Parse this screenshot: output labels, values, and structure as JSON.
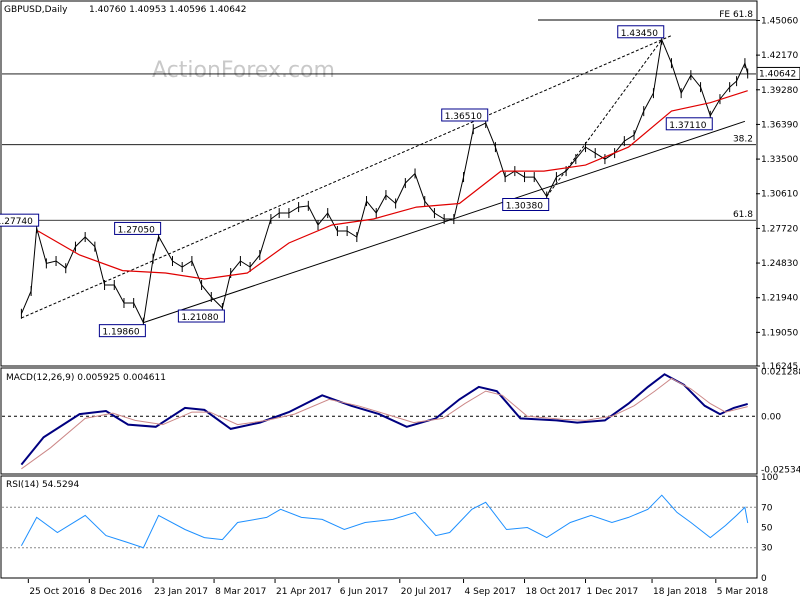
{
  "chart_data": [
    {
      "type": "candlestick",
      "title": "GBPUSD,Daily",
      "ohlc": "1.40760 1.40953 1.40596 1.40642",
      "watermark": "ActionForex.com",
      "last_price": "1.40642",
      "y_ticks": [
        "1.45060",
        "1.42170",
        "1.39280",
        "1.36390",
        "1.33500",
        "1.30610",
        "1.27720",
        "1.24830",
        "1.21940",
        "1.19050",
        "1.16245"
      ],
      "ylim": [
        1.16245,
        1.466
      ],
      "x_ticks": [
        "25 Oct 2016",
        "8 Dec 2016",
        "23 Jan 2017",
        "8 Mar 2017",
        "21 Apr 2017",
        "6 Jun 2017",
        "20 Jul 2017",
        "4 Sep 2017",
        "18 Oct 2017",
        "1 Dec 2017",
        "18 Jan 2018",
        "5 Mar 2018"
      ],
      "annotations": [
        {
          "label": "1.27740",
          "x": "2016-10-31",
          "y": 1.2774
        },
        {
          "label": "1.19860",
          "x": "2017-01-16",
          "y": 1.1986
        },
        {
          "label": "1.27050",
          "x": "2017-01-27",
          "y": 1.2705
        },
        {
          "label": "1.21080",
          "x": "2017-03-14",
          "y": 1.2108
        },
        {
          "label": "1.36510",
          "x": "2017-09-20",
          "y": 1.3651
        },
        {
          "label": "1.30380",
          "x": "2017-11-03",
          "y": 1.3038
        },
        {
          "label": "1.43450",
          "x": "2018-01-25",
          "y": 1.4345
        },
        {
          "label": "1.37110",
          "x": "2018-03-01",
          "y": 1.3711
        }
      ],
      "horizontal_levels": [
        {
          "label": "FE 61.8",
          "y": 1.451
        },
        {
          "label": "38.2",
          "y": 1.347
        },
        {
          "label": "61.8",
          "y": 1.284
        },
        {
          "label": "",
          "y": 1.406
        }
      ],
      "trend_lines": [
        {
          "style": "solid",
          "from": [
            "2017-01-16",
            1.1986
          ],
          "to": [
            "2018-03-26",
            1.3665
          ]
        },
        {
          "style": "dotted",
          "from": [
            "2016-10-20",
            1.2025
          ],
          "to": [
            "2018-02-01",
            1.438
          ]
        },
        {
          "style": "dotted",
          "from": [
            "2017-11-03",
            1.3038
          ],
          "to": [
            "2018-01-25",
            1.4345
          ]
        }
      ],
      "series": [
        {
          "name": "price",
          "color": "#000000",
          "values": [
            [
              "2016-10-20",
              1.206
            ],
            [
              "2016-10-27",
              1.225
            ],
            [
              "2016-10-31",
              1.2774
            ],
            [
              "2016-11-07",
              1.248
            ],
            [
              "2016-11-14",
              1.25
            ],
            [
              "2016-11-21",
              1.244
            ],
            [
              "2016-11-28",
              1.262
            ],
            [
              "2016-12-05",
              1.27
            ],
            [
              "2016-12-12",
              1.262
            ],
            [
              "2016-12-19",
              1.23
            ],
            [
              "2016-12-26",
              1.23
            ],
            [
              "2017-01-02",
              1.215
            ],
            [
              "2017-01-09",
              1.215
            ],
            [
              "2017-01-16",
              1.1986
            ],
            [
              "2017-01-23",
              1.252
            ],
            [
              "2017-01-27",
              1.2705
            ],
            [
              "2017-02-06",
              1.25
            ],
            [
              "2017-02-13",
              1.245
            ],
            [
              "2017-02-20",
              1.25
            ],
            [
              "2017-02-27",
              1.23
            ],
            [
              "2017-03-06",
              1.22
            ],
            [
              "2017-03-14",
              1.2108
            ],
            [
              "2017-03-20",
              1.24
            ],
            [
              "2017-03-27",
              1.25
            ],
            [
              "2017-04-03",
              1.245
            ],
            [
              "2017-04-10",
              1.255
            ],
            [
              "2017-04-18",
              1.285
            ],
            [
              "2017-04-24",
              1.29
            ],
            [
              "2017-05-01",
              1.29
            ],
            [
              "2017-05-08",
              1.295
            ],
            [
              "2017-05-15",
              1.296
            ],
            [
              "2017-05-22",
              1.28
            ],
            [
              "2017-05-29",
              1.29
            ],
            [
              "2017-06-05",
              1.275
            ],
            [
              "2017-06-12",
              1.275
            ],
            [
              "2017-06-19",
              1.27
            ],
            [
              "2017-06-26",
              1.3
            ],
            [
              "2017-07-03",
              1.29
            ],
            [
              "2017-07-10",
              1.305
            ],
            [
              "2017-07-17",
              1.298
            ],
            [
              "2017-07-24",
              1.315
            ],
            [
              "2017-07-31",
              1.323
            ],
            [
              "2017-08-07",
              1.3
            ],
            [
              "2017-08-14",
              1.29
            ],
            [
              "2017-08-21",
              1.285
            ],
            [
              "2017-08-28",
              1.285
            ],
            [
              "2017-09-04",
              1.32
            ],
            [
              "2017-09-11",
              1.36
            ],
            [
              "2017-09-20",
              1.3651
            ],
            [
              "2017-09-27",
              1.345
            ],
            [
              "2017-10-04",
              1.32
            ],
            [
              "2017-10-11",
              1.325
            ],
            [
              "2017-10-18",
              1.32
            ],
            [
              "2017-10-25",
              1.32
            ],
            [
              "2017-11-03",
              1.3038
            ],
            [
              "2017-11-10",
              1.32
            ],
            [
              "2017-11-17",
              1.325
            ],
            [
              "2017-11-24",
              1.335
            ],
            [
              "2017-12-01",
              1.345
            ],
            [
              "2017-12-08",
              1.34
            ],
            [
              "2017-12-15",
              1.335
            ],
            [
              "2017-12-22",
              1.34
            ],
            [
              "2017-12-29",
              1.35
            ],
            [
              "2018-01-05",
              1.355
            ],
            [
              "2018-01-12",
              1.375
            ],
            [
              "2018-01-19",
              1.39
            ],
            [
              "2018-01-25",
              1.4345
            ],
            [
              "2018-02-01",
              1.415
            ],
            [
              "2018-02-08",
              1.39
            ],
            [
              "2018-02-15",
              1.405
            ],
            [
              "2018-02-22",
              1.395
            ],
            [
              "2018-03-01",
              1.3711
            ],
            [
              "2018-03-08",
              1.385
            ],
            [
              "2018-03-15",
              1.395
            ],
            [
              "2018-03-20",
              1.4
            ],
            [
              "2018-03-26",
              1.415
            ],
            [
              "2018-03-28",
              1.4064
            ]
          ]
        },
        {
          "name": "moving-average",
          "color": "#e00000",
          "values": [
            [
              "2016-11-01",
              1.275
            ],
            [
              "2016-12-01",
              1.255
            ],
            [
              "2017-01-01",
              1.242
            ],
            [
              "2017-02-01",
              1.24
            ],
            [
              "2017-03-01",
              1.235
            ],
            [
              "2017-04-01",
              1.24
            ],
            [
              "2017-05-01",
              1.265
            ],
            [
              "2017-06-01",
              1.28
            ],
            [
              "2017-07-01",
              1.285
            ],
            [
              "2017-08-01",
              1.295
            ],
            [
              "2017-09-01",
              1.298
            ],
            [
              "2017-10-01",
              1.325
            ],
            [
              "2017-11-01",
              1.325
            ],
            [
              "2017-12-01",
              1.33
            ],
            [
              "2018-01-01",
              1.345
            ],
            [
              "2018-02-01",
              1.375
            ],
            [
              "2018-03-01",
              1.382
            ],
            [
              "2018-03-28",
              1.392
            ]
          ]
        }
      ]
    },
    {
      "type": "line",
      "title": "MACD(12,26,9) 0.005925 0.004611",
      "y_ticks": [
        "0.021288",
        "0.00",
        "-0.025342"
      ],
      "ylim": [
        -0.0275,
        0.0225
      ],
      "series": [
        {
          "name": "MACD",
          "color": "#000080",
          "values": [
            [
              "2016-10-20",
              -0.023
            ],
            [
              "2016-11-05",
              -0.01
            ],
            [
              "2016-12-01",
              0.001
            ],
            [
              "2016-12-20",
              0.0025
            ],
            [
              "2017-01-05",
              -0.004
            ],
            [
              "2017-01-25",
              -0.005
            ],
            [
              "2017-02-15",
              0.004
            ],
            [
              "2017-03-01",
              0.003
            ],
            [
              "2017-03-20",
              -0.006
            ],
            [
              "2017-04-10",
              -0.003
            ],
            [
              "2017-05-01",
              0.002
            ],
            [
              "2017-05-25",
              0.01
            ],
            [
              "2017-06-15",
              0.005
            ],
            [
              "2017-07-05",
              0.001
            ],
            [
              "2017-07-25",
              -0.005
            ],
            [
              "2017-08-15",
              -0.001
            ],
            [
              "2017-09-01",
              0.008
            ],
            [
              "2017-09-15",
              0.014
            ],
            [
              "2017-09-28",
              0.012
            ],
            [
              "2017-10-15",
              -0.001
            ],
            [
              "2017-11-10",
              -0.002
            ],
            [
              "2017-11-25",
              -0.003
            ],
            [
              "2017-12-15",
              -0.002
            ],
            [
              "2018-01-01",
              0.006
            ],
            [
              "2018-01-15",
              0.014
            ],
            [
              "2018-01-27",
              0.02
            ],
            [
              "2018-02-10",
              0.015
            ],
            [
              "2018-02-25",
              0.005
            ],
            [
              "2018-03-08",
              0.001
            ],
            [
              "2018-03-18",
              0.004
            ],
            [
              "2018-03-28",
              0.0059
            ]
          ]
        },
        {
          "name": "Signal",
          "color": "#cc8888",
          "values": [
            [
              "2016-10-20",
              -0.025
            ],
            [
              "2016-11-10",
              -0.015
            ],
            [
              "2016-12-05",
              -0.001
            ],
            [
              "2016-12-25",
              0.0015
            ],
            [
              "2017-01-10",
              -0.002
            ],
            [
              "2017-01-30",
              -0.004
            ],
            [
              "2017-02-20",
              0.002
            ],
            [
              "2017-03-05",
              0.002
            ],
            [
              "2017-03-25",
              -0.004
            ],
            [
              "2017-04-15",
              -0.002
            ],
            [
              "2017-05-05",
              0.001
            ],
            [
              "2017-05-30",
              0.008
            ],
            [
              "2017-06-20",
              0.005
            ],
            [
              "2017-07-10",
              0.001
            ],
            [
              "2017-07-30",
              -0.003
            ],
            [
              "2017-08-20",
              -0.001
            ],
            [
              "2017-09-05",
              0.006
            ],
            [
              "2017-09-20",
              0.012
            ],
            [
              "2017-10-02",
              0.01
            ],
            [
              "2017-10-20",
              0.0
            ],
            [
              "2017-11-15",
              -0.0015
            ],
            [
              "2017-12-01",
              -0.002
            ],
            [
              "2017-12-20",
              0.0
            ],
            [
              "2018-01-05",
              0.005
            ],
            [
              "2018-01-20",
              0.012
            ],
            [
              "2018-02-01",
              0.018
            ],
            [
              "2018-02-15",
              0.013
            ],
            [
              "2018-03-01",
              0.006
            ],
            [
              "2018-03-12",
              0.002
            ],
            [
              "2018-03-28",
              0.0046
            ]
          ]
        }
      ]
    },
    {
      "type": "line",
      "title": "RSI(14) 54.5294",
      "y_ticks": [
        "100",
        "70",
        "50",
        "30",
        "0"
      ],
      "ylim": [
        0,
        100
      ],
      "levels": [
        70,
        30
      ],
      "series": [
        {
          "name": "RSI",
          "color": "#1e90ff",
          "values": [
            [
              "2016-10-20",
              32
            ],
            [
              "2016-10-31",
              60
            ],
            [
              "2016-11-15",
              45
            ],
            [
              "2016-12-05",
              62
            ],
            [
              "2016-12-20",
              42
            ],
            [
              "2017-01-05",
              35
            ],
            [
              "2017-01-16",
              30
            ],
            [
              "2017-01-27",
              62
            ],
            [
              "2017-02-15",
              48
            ],
            [
              "2017-03-01",
              40
            ],
            [
              "2017-03-14",
              38
            ],
            [
              "2017-03-25",
              55
            ],
            [
              "2017-04-15",
              60
            ],
            [
              "2017-04-25",
              68
            ],
            [
              "2017-05-10",
              60
            ],
            [
              "2017-05-25",
              58
            ],
            [
              "2017-06-10",
              48
            ],
            [
              "2017-06-25",
              55
            ],
            [
              "2017-07-15",
              58
            ],
            [
              "2017-07-31",
              65
            ],
            [
              "2017-08-15",
              42
            ],
            [
              "2017-08-25",
              45
            ],
            [
              "2017-09-10",
              68
            ],
            [
              "2017-09-20",
              75
            ],
            [
              "2017-10-05",
              48
            ],
            [
              "2017-10-20",
              50
            ],
            [
              "2017-11-03",
              40
            ],
            [
              "2017-11-20",
              55
            ],
            [
              "2017-12-05",
              62
            ],
            [
              "2017-12-20",
              55
            ],
            [
              "2018-01-01",
              60
            ],
            [
              "2018-01-15",
              68
            ],
            [
              "2018-01-25",
              82
            ],
            [
              "2018-02-05",
              65
            ],
            [
              "2018-02-15",
              55
            ],
            [
              "2018-03-01",
              40
            ],
            [
              "2018-03-12",
              52
            ],
            [
              "2018-03-20",
              62
            ],
            [
              "2018-03-26",
              70
            ],
            [
              "2018-03-28",
              54.5
            ]
          ]
        }
      ]
    }
  ]
}
